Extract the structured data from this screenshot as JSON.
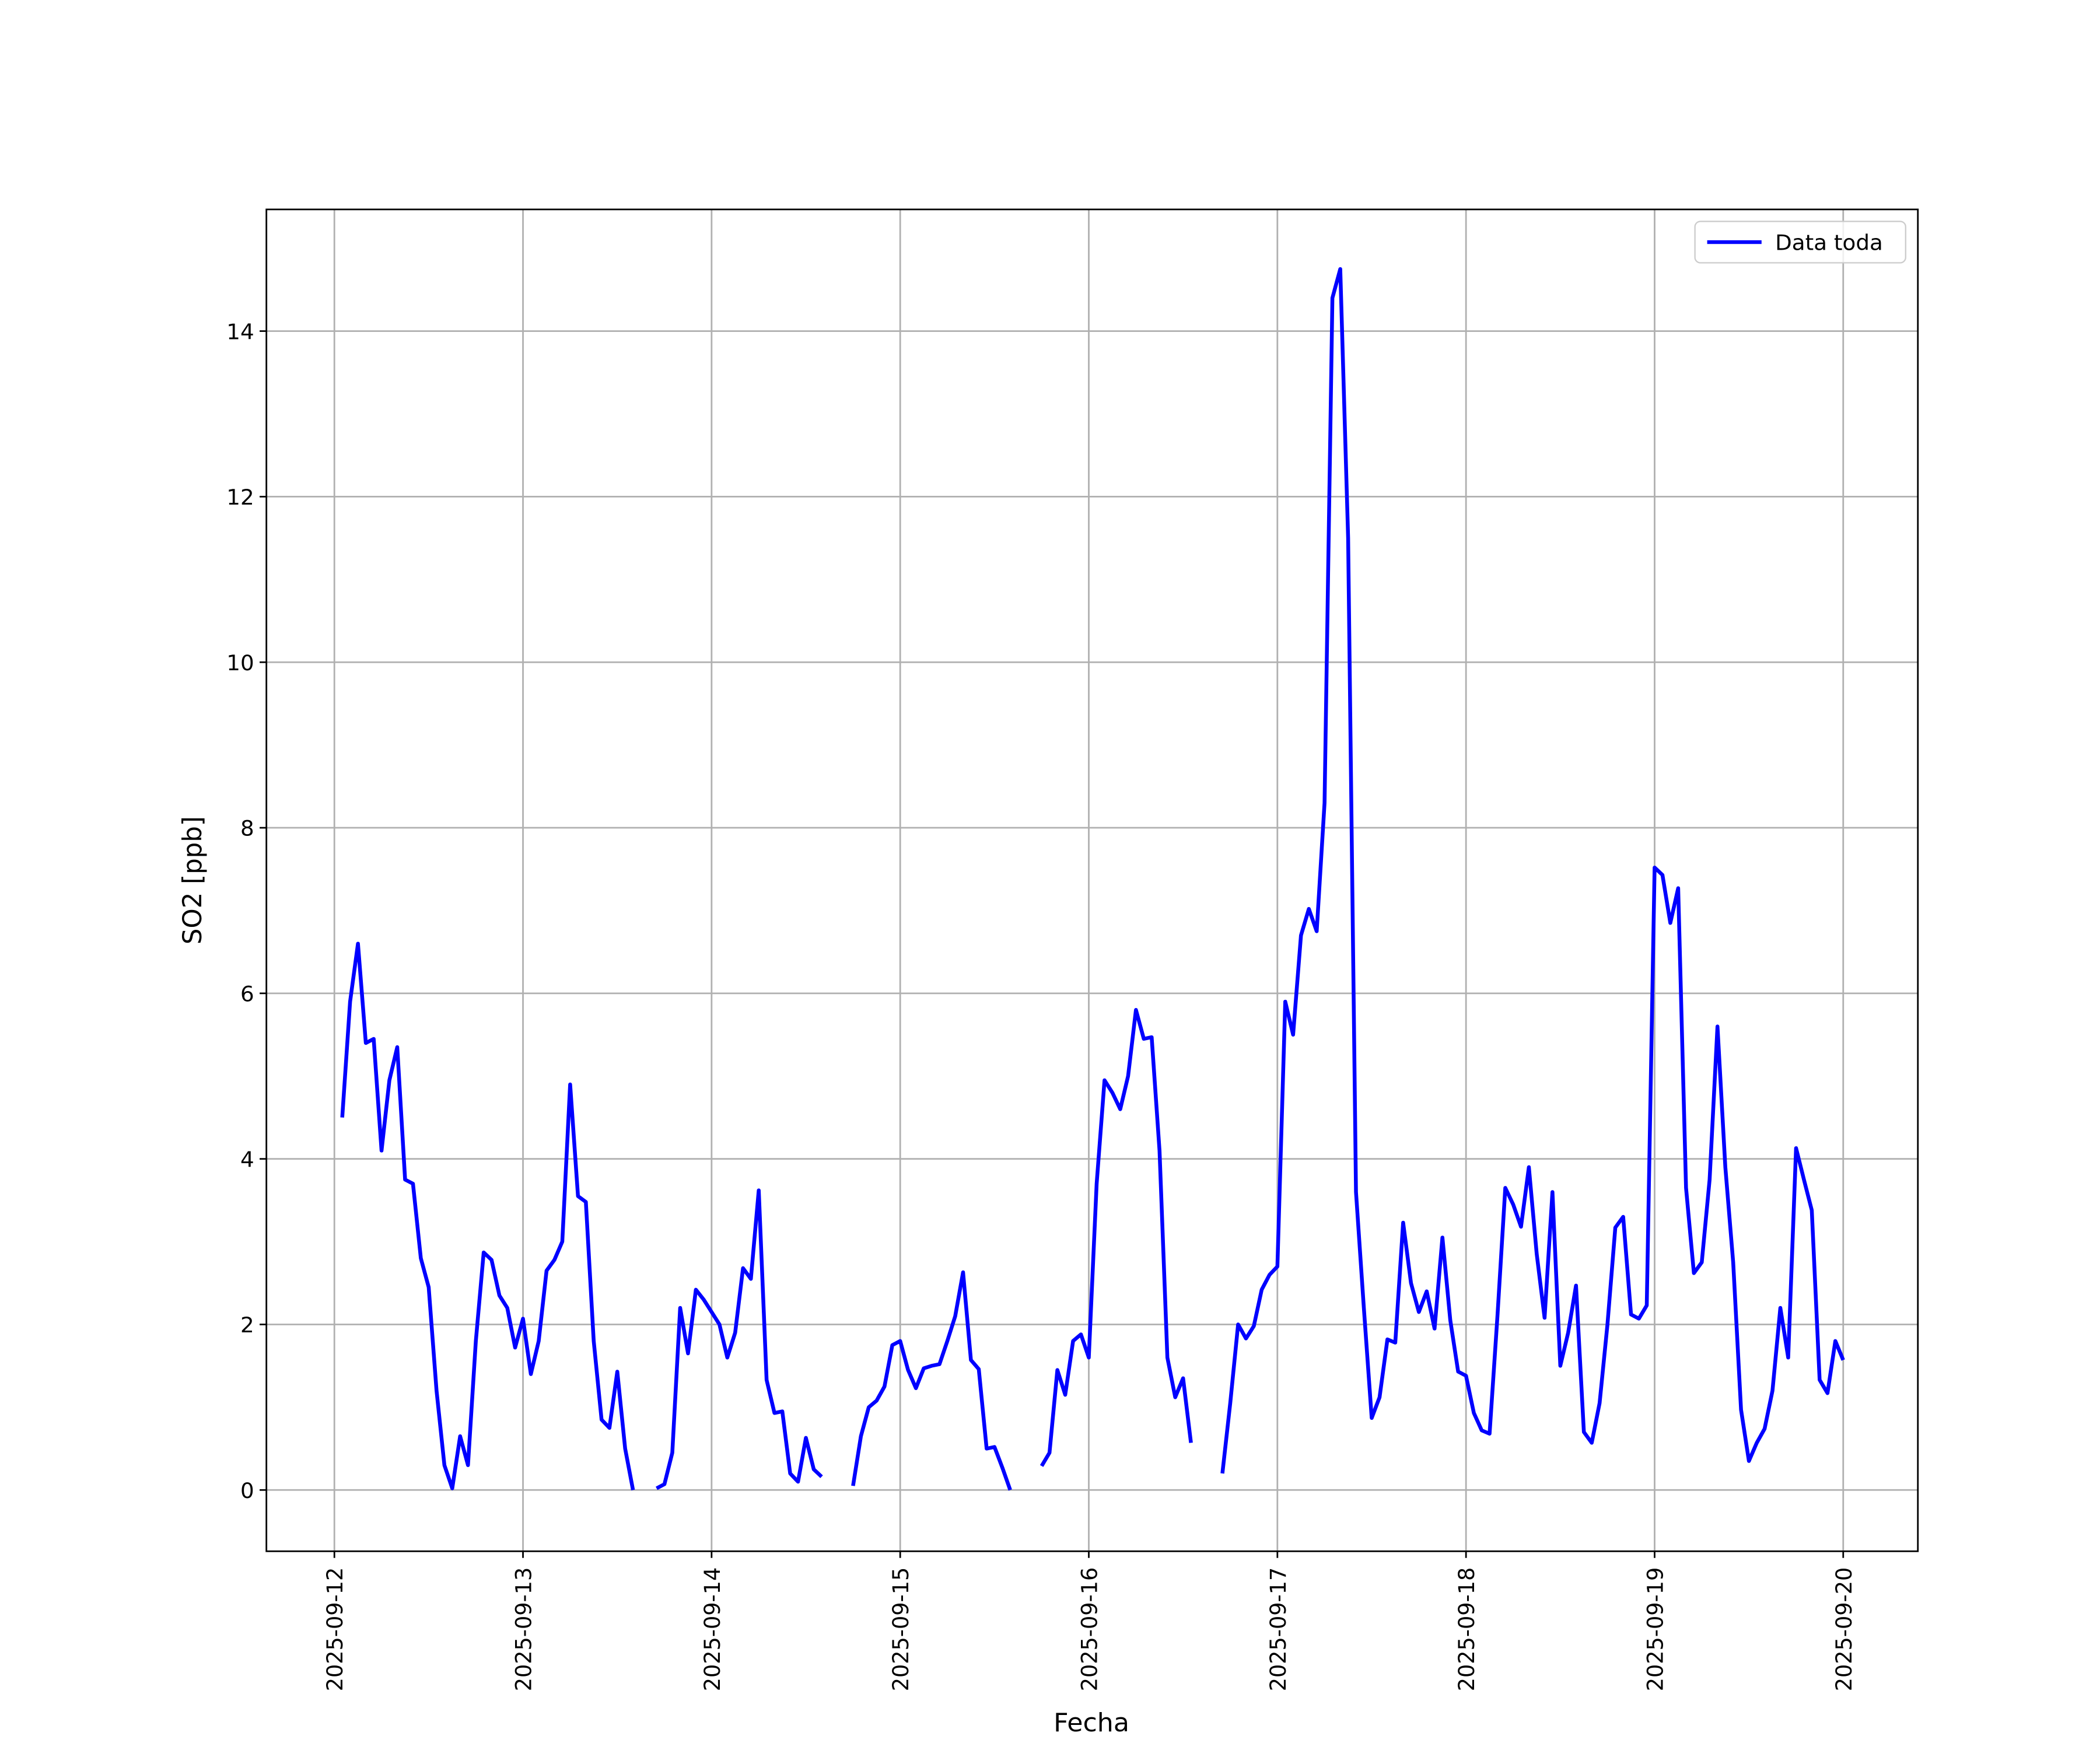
{
  "chart_data": {
    "type": "line",
    "x_label": "Fecha",
    "y_label": "SO2 [ppb]",
    "x": [
      "2025-09-12T01:00",
      "2025-09-12T02:00",
      "2025-09-12T03:00",
      "2025-09-12T04:00",
      "2025-09-12T05:00",
      "2025-09-12T06:00",
      "2025-09-12T07:00",
      "2025-09-12T08:00",
      "2025-09-12T09:00",
      "2025-09-12T10:00",
      "2025-09-12T11:00",
      "2025-09-12T12:00",
      "2025-09-12T13:00",
      "2025-09-12T14:00",
      "2025-09-12T15:00",
      "2025-09-12T16:00",
      "2025-09-12T17:00",
      "2025-09-12T18:00",
      "2025-09-12T19:00",
      "2025-09-12T20:00",
      "2025-09-12T21:00",
      "2025-09-12T22:00",
      "2025-09-12T23:00",
      "2025-09-13T00:00",
      "2025-09-13T01:00",
      "2025-09-13T02:00",
      "2025-09-13T03:00",
      "2025-09-13T04:00",
      "2025-09-13T05:00",
      "2025-09-13T06:00",
      "2025-09-13T07:00",
      "2025-09-13T08:00",
      "2025-09-13T09:00",
      "2025-09-13T10:00",
      "2025-09-13T11:00",
      "2025-09-13T12:00",
      "2025-09-13T13:00",
      "2025-09-13T14:00",
      "2025-09-13T15:00",
      "2025-09-13T16:00",
      "2025-09-13T17:00",
      "2025-09-13T18:00",
      "2025-09-13T19:00",
      "2025-09-13T20:00",
      "2025-09-13T21:00",
      "2025-09-13T22:00",
      "2025-09-13T23:00",
      "2025-09-14T00:00",
      "2025-09-14T01:00",
      "2025-09-14T02:00",
      "2025-09-14T03:00",
      "2025-09-14T04:00",
      "2025-09-14T05:00",
      "2025-09-14T06:00",
      "2025-09-14T07:00",
      "2025-09-14T08:00",
      "2025-09-14T09:00",
      "2025-09-14T10:00",
      "2025-09-14T11:00",
      "2025-09-14T12:00",
      "2025-09-14T13:00",
      "2025-09-14T14:00",
      "2025-09-14T15:00",
      "2025-09-14T16:00",
      "2025-09-14T17:00",
      "2025-09-14T18:00",
      "2025-09-14T19:00",
      "2025-09-14T20:00",
      "2025-09-14T21:00",
      "2025-09-14T22:00",
      "2025-09-14T23:00",
      "2025-09-15T00:00",
      "2025-09-15T01:00",
      "2025-09-15T02:00",
      "2025-09-15T03:00",
      "2025-09-15T04:00",
      "2025-09-15T05:00",
      "2025-09-15T06:00",
      "2025-09-15T07:00",
      "2025-09-15T08:00",
      "2025-09-15T09:00",
      "2025-09-15T10:00",
      "2025-09-15T11:00",
      "2025-09-15T12:00",
      "2025-09-15T13:00",
      "2025-09-15T14:00",
      "2025-09-15T15:00",
      "2025-09-15T16:00",
      "2025-09-15T17:00",
      "2025-09-15T18:00",
      "2025-09-15T19:00",
      "2025-09-15T20:00",
      "2025-09-15T21:00",
      "2025-09-15T22:00",
      "2025-09-15T23:00",
      "2025-09-16T00:00",
      "2025-09-16T01:00",
      "2025-09-16T02:00",
      "2025-09-16T03:00",
      "2025-09-16T04:00",
      "2025-09-16T05:00",
      "2025-09-16T06:00",
      "2025-09-16T07:00",
      "2025-09-16T08:00",
      "2025-09-16T09:00",
      "2025-09-16T10:00",
      "2025-09-16T11:00",
      "2025-09-16T12:00",
      "2025-09-16T13:00",
      "2025-09-16T14:00",
      "2025-09-16T15:00",
      "2025-09-16T16:00",
      "2025-09-16T17:00",
      "2025-09-16T18:00",
      "2025-09-16T19:00",
      "2025-09-16T20:00",
      "2025-09-16T21:00",
      "2025-09-16T22:00",
      "2025-09-16T23:00",
      "2025-09-17T00:00",
      "2025-09-17T01:00",
      "2025-09-17T02:00",
      "2025-09-17T03:00",
      "2025-09-17T04:00",
      "2025-09-17T05:00",
      "2025-09-17T06:00",
      "2025-09-17T07:00",
      "2025-09-17T08:00",
      "2025-09-17T09:00",
      "2025-09-17T10:00",
      "2025-09-17T11:00",
      "2025-09-17T12:00",
      "2025-09-17T13:00",
      "2025-09-17T14:00",
      "2025-09-17T15:00",
      "2025-09-17T16:00",
      "2025-09-17T17:00",
      "2025-09-17T18:00",
      "2025-09-17T19:00",
      "2025-09-17T20:00",
      "2025-09-17T21:00",
      "2025-09-17T22:00",
      "2025-09-17T23:00",
      "2025-09-18T00:00",
      "2025-09-18T01:00",
      "2025-09-18T02:00",
      "2025-09-18T03:00",
      "2025-09-18T04:00",
      "2025-09-18T05:00",
      "2025-09-18T06:00",
      "2025-09-18T07:00",
      "2025-09-18T08:00",
      "2025-09-18T09:00",
      "2025-09-18T10:00",
      "2025-09-18T11:00",
      "2025-09-18T12:00",
      "2025-09-18T13:00",
      "2025-09-18T14:00",
      "2025-09-18T15:00",
      "2025-09-18T16:00",
      "2025-09-18T17:00",
      "2025-09-18T18:00",
      "2025-09-18T19:00",
      "2025-09-18T20:00",
      "2025-09-18T21:00",
      "2025-09-18T22:00",
      "2025-09-18T23:00",
      "2025-09-19T00:00",
      "2025-09-19T01:00",
      "2025-09-19T02:00",
      "2025-09-19T03:00",
      "2025-09-19T04:00",
      "2025-09-19T05:00",
      "2025-09-19T06:00",
      "2025-09-19T07:00",
      "2025-09-19T08:00",
      "2025-09-19T09:00",
      "2025-09-19T10:00",
      "2025-09-19T11:00",
      "2025-09-19T12:00",
      "2025-09-19T13:00",
      "2025-09-19T14:00",
      "2025-09-19T15:00",
      "2025-09-19T16:00",
      "2025-09-19T17:00",
      "2025-09-19T18:00",
      "2025-09-19T19:00",
      "2025-09-19T20:00",
      "2025-09-19T21:00",
      "2025-09-19T22:00",
      "2025-09-19T23:00",
      "2025-09-20T00:00"
    ],
    "series": [
      {
        "name": "Data toda",
        "color": "#0000ff",
        "values": [
          4.5,
          5.9,
          6.6,
          5.4,
          5.45,
          4.1,
          4.95,
          5.35,
          3.75,
          3.7,
          2.8,
          2.45,
          1.2,
          0.3,
          0.02,
          0.65,
          0.3,
          1.8,
          2.87,
          2.78,
          2.35,
          2.2,
          1.72,
          2.07,
          1.4,
          1.8,
          2.65,
          2.78,
          3.0,
          4.9,
          3.55,
          3.48,
          1.8,
          0.85,
          0.75,
          1.43,
          0.5,
          0.0,
          null,
          null,
          0.02,
          0.07,
          0.45,
          2.2,
          1.65,
          2.42,
          2.3,
          2.15,
          2.0,
          1.6,
          1.9,
          2.68,
          2.55,
          3.62,
          1.33,
          0.93,
          0.95,
          0.2,
          0.1,
          0.63,
          0.25,
          0.16,
          null,
          null,
          null,
          0.05,
          0.65,
          1.0,
          1.08,
          1.25,
          1.75,
          1.8,
          1.45,
          1.23,
          1.47,
          1.5,
          1.52,
          1.8,
          2.1,
          2.63,
          1.57,
          1.46,
          0.5,
          0.52,
          0.27,
          0.0,
          null,
          null,
          null,
          0.29,
          0.45,
          1.45,
          1.15,
          1.8,
          1.88,
          1.6,
          3.7,
          4.95,
          4.8,
          4.6,
          5.0,
          5.8,
          5.45,
          5.47,
          4.1,
          1.6,
          1.12,
          1.35,
          0.57,
          null,
          null,
          null,
          0.2,
          1.05,
          2.0,
          1.83,
          1.98,
          2.42,
          2.6,
          2.7,
          5.9,
          5.5,
          6.7,
          7.02,
          6.75,
          8.3,
          14.4,
          14.75,
          11.5,
          3.6,
          2.2,
          0.87,
          1.12,
          1.82,
          1.78,
          3.23,
          2.5,
          2.15,
          2.4,
          1.95,
          3.05,
          2.05,
          1.43,
          1.38,
          0.93,
          0.72,
          0.68,
          2.1,
          3.65,
          3.45,
          3.18,
          3.9,
          2.85,
          2.08,
          3.6,
          1.5,
          1.9,
          2.47,
          0.7,
          0.57,
          1.05,
          2.0,
          3.17,
          3.3,
          2.12,
          2.07,
          2.23,
          7.52,
          7.43,
          6.85,
          7.27,
          3.65,
          2.62,
          2.75,
          3.75,
          5.6,
          3.9,
          2.75,
          0.97,
          0.35,
          0.57,
          0.74,
          1.2,
          2.2,
          1.6,
          4.13,
          3.75,
          3.38,
          1.33,
          1.17,
          1.8,
          1.57
        ]
      }
    ],
    "xlim": [
      "2025-09-11T15:21",
      "2025-09-20T09:30"
    ],
    "xticks": [
      "2025-09-12",
      "2025-09-13",
      "2025-09-14",
      "2025-09-15",
      "2025-09-16",
      "2025-09-17",
      "2025-09-18",
      "2025-09-19",
      "2025-09-20"
    ],
    "ylim": [
      -0.74,
      15.47
    ],
    "yticks": [
      0,
      2,
      4,
      6,
      8,
      10,
      12,
      14
    ],
    "grid": true,
    "legend": "upper right"
  }
}
